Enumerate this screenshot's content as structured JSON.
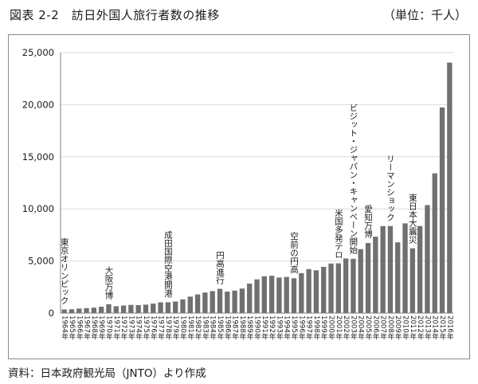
{
  "header": {
    "title": "図表 2-2　訪日外国人旅行者数の推移",
    "unit": "（単位：千人）"
  },
  "footer": {
    "source": "資料：日本政府観光局（JNTO）より作成"
  },
  "colors": {
    "bar": "#707070",
    "axis": "#7f7f7f",
    "grid": "#d9d9d9"
  },
  "chart_data": {
    "type": "bar",
    "categories": [
      "1964年",
      "1965年",
      "1966年",
      "1967年",
      "1968年",
      "1969年",
      "1970年",
      "1971年",
      "1972年",
      "1973年",
      "1974年",
      "1975年",
      "1976年",
      "1977年",
      "1978年",
      "1979年",
      "1980年",
      "1981年",
      "1982年",
      "1983年",
      "1984年",
      "1985年",
      "1986年",
      "1987年",
      "1988年",
      "1989年",
      "1990年",
      "1991年",
      "1992年",
      "1993年",
      "1994年",
      "1995年",
      "1996年",
      "1997年",
      "1998年",
      "1999年",
      "2000年",
      "2001年",
      "2002年",
      "2003年",
      "2004年",
      "2005年",
      "2006年",
      "2007年",
      "2008年",
      "2009年",
      "2010年",
      "2011年",
      "2012年",
      "2013年",
      "2014年",
      "2015年",
      "2016年"
    ],
    "values": [
      353,
      367,
      433,
      477,
      519,
      609,
      854,
      660,
      724,
      785,
      764,
      812,
      915,
      1028,
      1039,
      1113,
      1317,
      1583,
      1793,
      1968,
      2110,
      2327,
      2062,
      2155,
      2355,
      2835,
      3236,
      3533,
      3582,
      3410,
      3468,
      3345,
      3837,
      4218,
      4106,
      4438,
      4757,
      4772,
      5239,
      5212,
      6138,
      6728,
      7334,
      8347,
      8351,
      6790,
      8611,
      6219,
      8358,
      10364,
      13413,
      19737,
      24040
    ],
    "ylim": [
      0,
      25000
    ],
    "yticks": [
      0,
      5000,
      10000,
      15000,
      20000,
      25000
    ],
    "ytick_labels": [
      "0",
      "5,000",
      "10,000",
      "15,000",
      "20,000",
      "25,000"
    ],
    "grid": true,
    "annotations": [
      {
        "category": "1964年",
        "text": "東京オリンピック"
      },
      {
        "category": "1970年",
        "text": "大阪万博"
      },
      {
        "category": "1978年",
        "text": "成田国際空港開港"
      },
      {
        "category": "1985年",
        "text": "円高進行"
      },
      {
        "category": "1995年",
        "text": "空前の円高"
      },
      {
        "category": "2001年",
        "text": "米国多発テロ"
      },
      {
        "category": "2003年",
        "text": "ビジット・ジャパン・キャンペーン開始"
      },
      {
        "category": "2005年",
        "text": "愛知万博"
      },
      {
        "category": "2008年",
        "text": "リーマンショック"
      },
      {
        "category": "2011年",
        "text": "東日本大震災"
      }
    ]
  }
}
